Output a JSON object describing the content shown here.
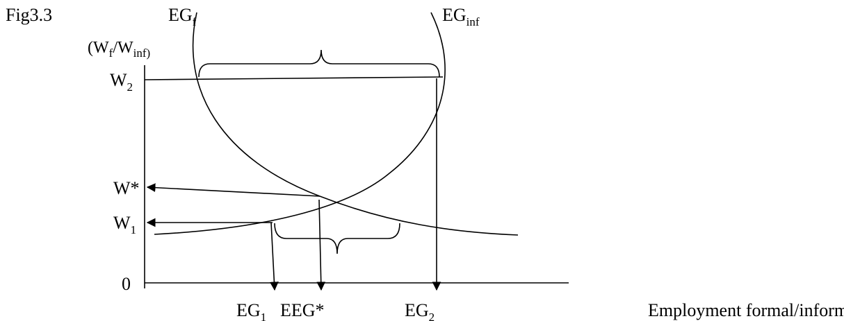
{
  "figure_label": "Fig3.3",
  "curves": {
    "eg_f": {
      "main": "EG",
      "sub": "f"
    },
    "eg_inf": {
      "main": "EG",
      "sub": "inf"
    }
  },
  "y_axis": {
    "title_open": "(W",
    "title_sub1": "f",
    "title_slash": "/W",
    "title_sub2": "inf)",
    "w2_main": "W",
    "w2_sub": "2",
    "wstar": "W*",
    "w1_main": "W",
    "w1_sub": "1",
    "zero": "0"
  },
  "x_axis": {
    "eg1_main": "EG",
    "eg1_sub": "1",
    "eeg_star": "EEG*",
    "eg2_main": "EG",
    "eg2_sub": "2",
    "title": "Employment formal/informal"
  }
}
